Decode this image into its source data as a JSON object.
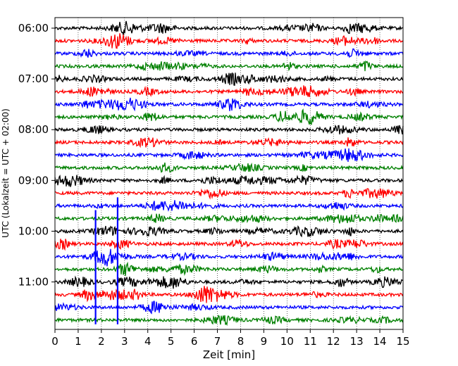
{
  "chart_data": {
    "type": "line",
    "title": "",
    "xlabel": "Zeit  [min]",
    "ylabel": "UTC (Lokalzeit = UTC + 02:00)",
    "xlim": [
      0,
      15
    ],
    "x_ticks": [
      "0",
      "1",
      "2",
      "3",
      "4",
      "5",
      "6",
      "7",
      "8",
      "9",
      "10",
      "11",
      "12",
      "13",
      "14",
      "15"
    ],
    "y_ticks": [
      "06:00",
      "07:00",
      "08:00",
      "09:00",
      "10:00",
      "11:00"
    ],
    "grid": "vertical dotted lines at each minute",
    "trace_interval_minutes": 15,
    "trace_start_times": [
      "06:00",
      "06:15",
      "06:30",
      "06:45",
      "07:00",
      "07:15",
      "07:30",
      "07:45",
      "08:00",
      "08:15",
      "08:30",
      "08:45",
      "09:00",
      "09:15",
      "09:30",
      "09:45",
      "10:00",
      "10:15",
      "10:30",
      "10:45",
      "11:00",
      "11:15",
      "11:30",
      "11:45"
    ],
    "trace_colors_cycle": [
      "#000000",
      "#ff0000",
      "#0000ff",
      "#008000"
    ],
    "events": [
      {
        "minute": 1.75,
        "from": "09:45",
        "to": "11:45",
        "color": "#0000ff",
        "description": "large spike"
      },
      {
        "minute": 2.7,
        "from": "09:30",
        "to": "11:45",
        "color": "#0000ff",
        "description": "large spike"
      }
    ]
  }
}
